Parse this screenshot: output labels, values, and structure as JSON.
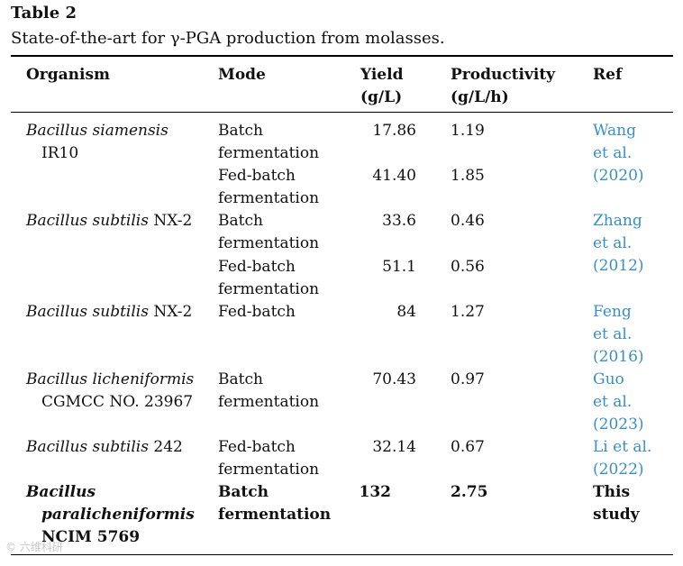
{
  "table": {
    "label": "Table 2",
    "caption": "State-of-the-art for γ-PGA production from molasses.",
    "headers": {
      "organism": "Organism",
      "mode": "Mode",
      "yield": [
        "Yield",
        "(g/L)"
      ],
      "productivity": [
        "Productivity",
        "(g/L/h)"
      ],
      "ref": "Ref"
    },
    "rows": [
      {
        "organism_it": "Bacillus siamensis",
        "organism_line2": "IR10",
        "mode": [
          "Batch",
          "fermentation"
        ],
        "yield": "17.86",
        "productivity": "1.19",
        "ref": [
          "Wang",
          "et al.",
          "(2020)"
        ]
      },
      {
        "mode": [
          "Fed-batch",
          "fermentation"
        ],
        "yield": "41.40",
        "productivity": "1.85"
      },
      {
        "organism_it": "Bacillus subtilis",
        "organism_tail": " NX-2",
        "mode": [
          "Batch",
          "fermentation"
        ],
        "yield": "33.6",
        "productivity": "0.46",
        "ref": [
          "Zhang",
          "et al.",
          "(2012)"
        ]
      },
      {
        "mode": [
          "Fed-batch",
          "fermentation"
        ],
        "yield": "51.1",
        "productivity": "0.56"
      },
      {
        "organism_it": "Bacillus subtilis",
        "organism_tail": " NX-2",
        "mode": [
          "Fed-batch"
        ],
        "yield": "84",
        "productivity": "1.27",
        "ref": [
          "Feng",
          "et al.",
          "(2016)"
        ]
      },
      {
        "organism_it": "Bacillus licheniformis",
        "organism_line2": "CGMCC NO. 23967",
        "mode": [
          "Batch",
          "fermentation"
        ],
        "yield": "70.43",
        "productivity": "0.97",
        "ref": [
          "Guo",
          "et al.",
          "(2023)"
        ]
      },
      {
        "organism_it": "Bacillus subtilis",
        "organism_tail": " 242",
        "mode": [
          "Fed-batch",
          "fermentation"
        ],
        "yield": "32.14",
        "productivity": "0.67",
        "ref": [
          "Li et al.",
          "(2022)"
        ]
      },
      {
        "organism_lines": [
          "Bacillus",
          "paralicheniformis",
          "NCIM 5769"
        ],
        "mode": [
          "Batch",
          "fermentation"
        ],
        "yield": "132",
        "productivity": "2.75",
        "ref": [
          "This",
          "study"
        ]
      }
    ]
  },
  "watermark": "© 六维科研"
}
